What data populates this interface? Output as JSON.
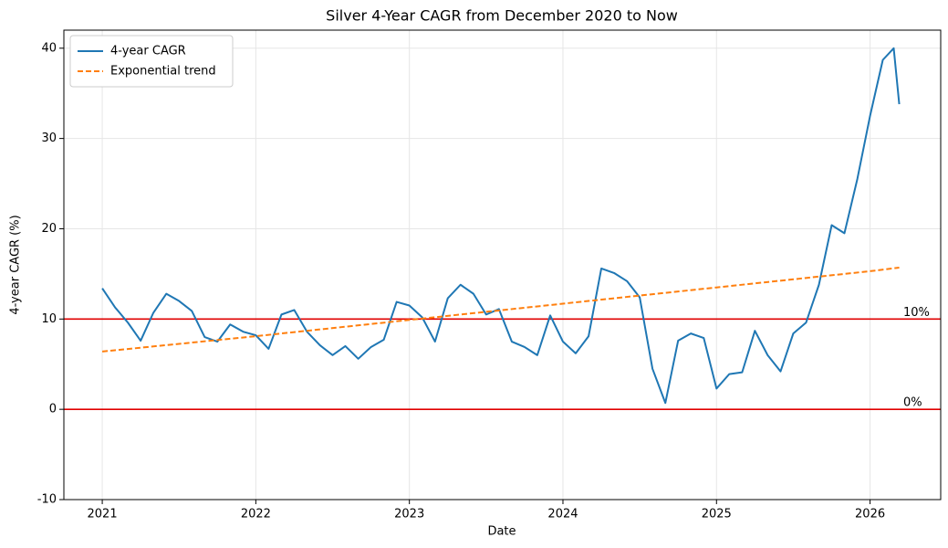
{
  "chart_data": {
    "type": "line",
    "title": "Silver 4-Year CAGR from December 2020 to Now",
    "xlabel": "Date",
    "ylabel": "4-year CAGR (%)",
    "xlim": [
      2020.75,
      2026.46
    ],
    "ylim": [
      -10,
      42
    ],
    "xticks": [
      2021,
      2022,
      2023,
      2024,
      2025,
      2026
    ],
    "yticks": [
      -10,
      0,
      10,
      20,
      30,
      40
    ],
    "grid": true,
    "legend": "upper left",
    "series": [
      {
        "name": "4-year CAGR",
        "color": "#1f77b4",
        "style": "solid",
        "x": [
          2021.0,
          2021.083,
          2021.167,
          2021.25,
          2021.333,
          2021.417,
          2021.5,
          2021.583,
          2021.667,
          2021.75,
          2021.833,
          2021.917,
          2022.0,
          2022.083,
          2022.167,
          2022.25,
          2022.333,
          2022.417,
          2022.5,
          2022.583,
          2022.667,
          2022.75,
          2022.833,
          2022.917,
          2023.0,
          2023.083,
          2023.167,
          2023.25,
          2023.333,
          2023.417,
          2023.5,
          2023.583,
          2023.667,
          2023.75,
          2023.833,
          2023.917,
          2024.0,
          2024.083,
          2024.167,
          2024.25,
          2024.333,
          2024.417,
          2024.5,
          2024.583,
          2024.667,
          2024.75,
          2024.833,
          2024.917,
          2025.0,
          2025.083,
          2025.167,
          2025.25,
          2025.333,
          2025.417,
          2025.5,
          2025.583,
          2025.667,
          2025.75,
          2025.833,
          2025.917,
          2026.0,
          2026.083,
          2026.154,
          2026.19
        ],
        "values": [
          13.4,
          11.3,
          9.6,
          7.6,
          10.7,
          12.8,
          12.0,
          10.9,
          8.0,
          7.5,
          9.4,
          8.6,
          8.2,
          6.7,
          10.5,
          11.0,
          8.6,
          7.1,
          6.0,
          7.0,
          5.6,
          6.9,
          7.7,
          11.9,
          11.5,
          10.2,
          7.5,
          12.3,
          13.8,
          12.8,
          10.5,
          11.1,
          7.5,
          6.9,
          6.0,
          10.4,
          7.5,
          6.2,
          8.1,
          15.6,
          15.1,
          14.2,
          12.4,
          4.5,
          0.7,
          7.6,
          8.4,
          7.9,
          2.3,
          3.9,
          4.1,
          8.7,
          6.0,
          4.2,
          8.4,
          9.6,
          13.8,
          20.4,
          19.5,
          25.5,
          32.5,
          38.7,
          40.0,
          33.8
        ]
      },
      {
        "name": "Exponential trend",
        "color": "#ff7f0e",
        "style": "dashed",
        "x": [
          2021.0,
          2022.0,
          2023.0,
          2024.0,
          2025.0,
          2026.0,
          2026.19
        ],
        "values": [
          6.4,
          8.1,
          9.9,
          11.7,
          13.5,
          15.3,
          15.7
        ]
      }
    ],
    "annotations": [
      {
        "y": 10,
        "label": "10%",
        "color": "#e00000"
      },
      {
        "y": 0,
        "label": "0%",
        "color": "#e00000"
      }
    ]
  }
}
